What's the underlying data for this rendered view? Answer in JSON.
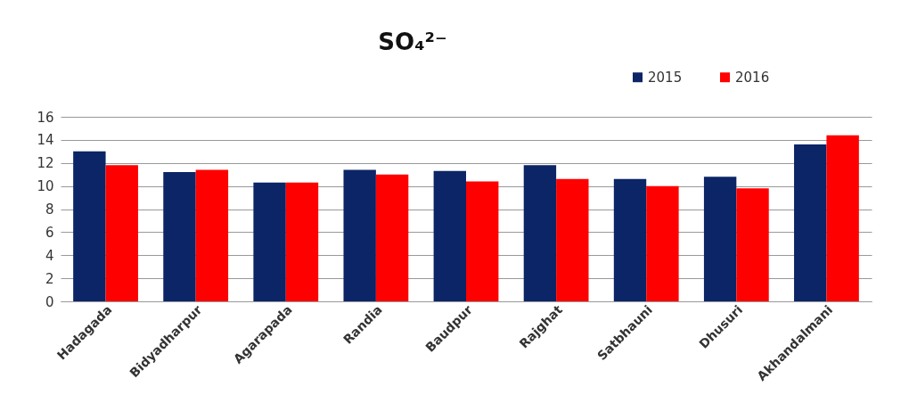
{
  "chart_data": {
    "type": "bar",
    "title": "SO₄²⁻",
    "categories": [
      "Hadagada",
      "Bidyadharpur",
      "Agarapada",
      "Randia",
      "Baudpur",
      "Rajghat",
      "Satbhauni",
      "Dhusuri",
      "Akhandalmani"
    ],
    "series": [
      {
        "name": "2015",
        "color": "#0b2566",
        "values": [
          13.0,
          11.2,
          10.3,
          11.4,
          11.3,
          11.8,
          10.6,
          10.8,
          13.6
        ]
      },
      {
        "name": "2016",
        "color": "#ff0000",
        "values": [
          11.8,
          11.4,
          10.3,
          11.0,
          10.4,
          10.6,
          10.0,
          9.8,
          14.4
        ]
      }
    ],
    "ylim": [
      0,
      16
    ],
    "yticks": [
      0,
      2,
      4,
      6,
      8,
      10,
      12,
      14,
      16
    ],
    "grid": "y",
    "legend": "top right"
  }
}
